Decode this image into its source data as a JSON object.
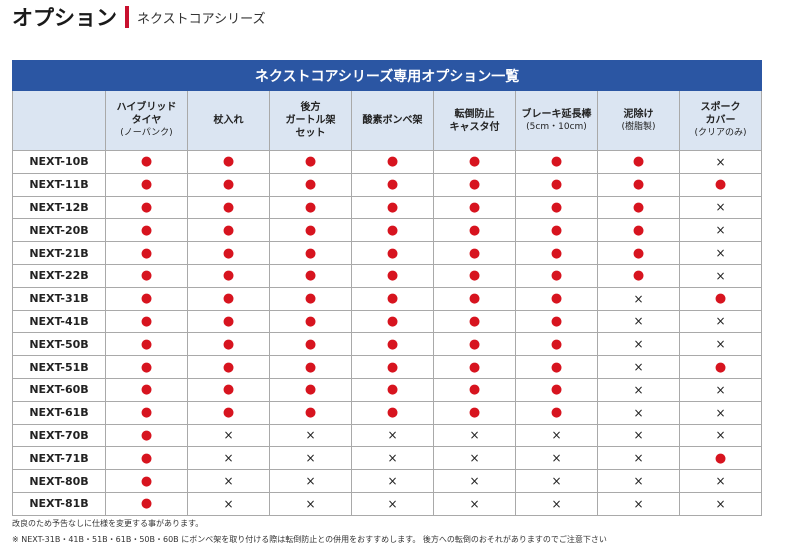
{
  "header": {
    "title": "オプション",
    "subtitle": "ネクストコアシリーズ"
  },
  "table": {
    "title": "ネクストコアシリーズ専用オプション一覧",
    "columns": [
      [
        "ハイブリッド",
        "タイヤ",
        "(ノーパンク)"
      ],
      [
        "杖入れ"
      ],
      [
        "後方",
        "ガートル架",
        "セット"
      ],
      [
        "酸素ボンベ架"
      ],
      [
        "転倒防止",
        "キャスタ付"
      ],
      [
        "ブレーキ延長棒",
        "(5cm・10cm)"
      ],
      [
        "泥除け",
        "(樹脂製)"
      ],
      [
        "スポーク",
        "カバー",
        "(クリアのみ)"
      ]
    ],
    "rows": [
      [
        "NEXT-10B",
        "●",
        "●",
        "●",
        "●",
        "●",
        "●",
        "●",
        "×"
      ],
      [
        "NEXT-11B",
        "●",
        "●",
        "●",
        "●",
        "●",
        "●",
        "●",
        "●"
      ],
      [
        "NEXT-12B",
        "●",
        "●",
        "●",
        "●",
        "●",
        "●",
        "●",
        "×"
      ],
      [
        "NEXT-20B",
        "●",
        "●",
        "●",
        "●",
        "●",
        "●",
        "●",
        "×"
      ],
      [
        "NEXT-21B",
        "●",
        "●",
        "●",
        "●",
        "●",
        "●",
        "●",
        "×"
      ],
      [
        "NEXT-22B",
        "●",
        "●",
        "●",
        "●",
        "●",
        "●",
        "●",
        "×"
      ],
      [
        "NEXT-31B",
        "●",
        "●",
        "●",
        "●",
        "●",
        "●",
        "×",
        "●"
      ],
      [
        "NEXT-41B",
        "●",
        "●",
        "●",
        "●",
        "●",
        "●",
        "×",
        "×"
      ],
      [
        "NEXT-50B",
        "●",
        "●",
        "●",
        "●",
        "●",
        "●",
        "×",
        "×"
      ],
      [
        "NEXT-51B",
        "●",
        "●",
        "●",
        "●",
        "●",
        "●",
        "×",
        "●"
      ],
      [
        "NEXT-60B",
        "●",
        "●",
        "●",
        "●",
        "●",
        "●",
        "×",
        "×"
      ],
      [
        "NEXT-61B",
        "●",
        "●",
        "●",
        "●",
        "●",
        "●",
        "×",
        "×"
      ],
      [
        "NEXT-70B",
        "●",
        "×",
        "×",
        "×",
        "×",
        "×",
        "×",
        "×"
      ],
      [
        "NEXT-71B",
        "●",
        "×",
        "×",
        "×",
        "×",
        "×",
        "×",
        "●"
      ],
      [
        "NEXT-80B",
        "●",
        "×",
        "×",
        "×",
        "×",
        "×",
        "×",
        "×"
      ],
      [
        "NEXT-81B",
        "●",
        "×",
        "×",
        "×",
        "×",
        "×",
        "×",
        "×"
      ]
    ]
  },
  "notes": [
    "改良のため予告なしに仕様を変更する事があります。",
    "※ NEXT-31B・41B・51B・61B・50B・60B にボンベ架を取り付ける際は転倒防止との併用をおすすめします。 後方への転倒のおそれがありますのでご注意下さい"
  ]
}
